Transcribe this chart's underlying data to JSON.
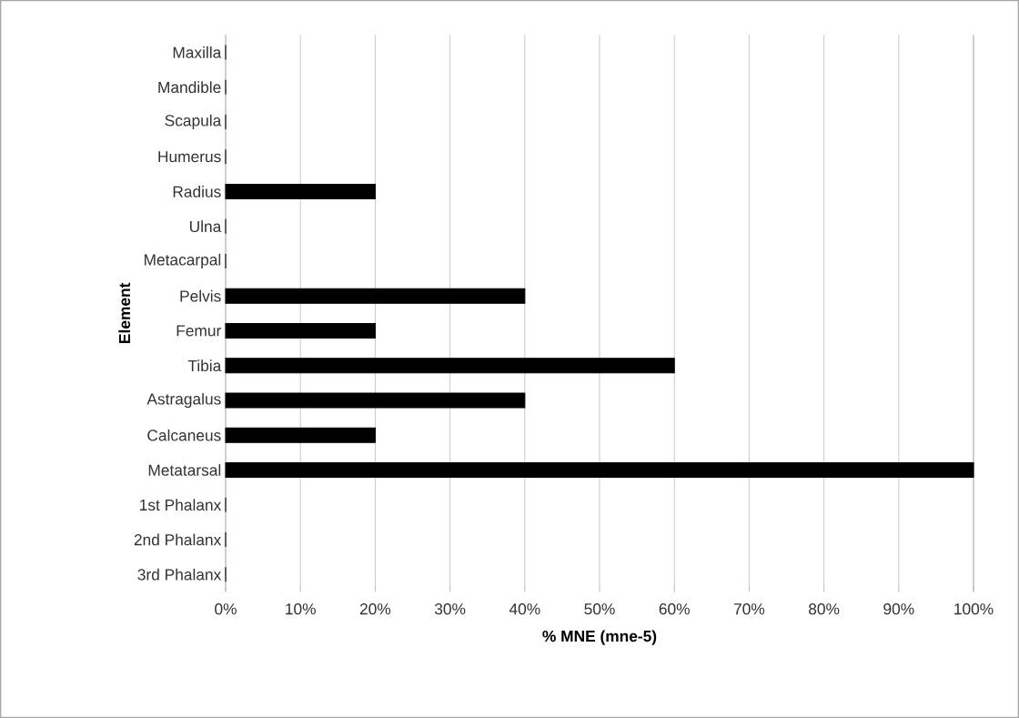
{
  "chart_data": {
    "type": "bar",
    "orientation": "horizontal",
    "xlabel": "% MNE (mne-5)",
    "ylabel": "Element",
    "categories": [
      "Maxilla",
      "Mandible",
      "Scapula",
      "Humerus",
      "Radius",
      "Ulna",
      "Metacarpal",
      "Pelvis",
      "Femur",
      "Tibia",
      "Astragalus",
      "Calcaneus",
      "Metatarsal",
      "1st Phalanx",
      "2nd Phalanx",
      "3rd Phalanx"
    ],
    "values": [
      0,
      0,
      0,
      0,
      20,
      0,
      0,
      40,
      20,
      60,
      40,
      20,
      100,
      0,
      0,
      0
    ],
    "color": "#000000",
    "xlim": [
      0,
      100
    ],
    "xticks": [
      {
        "value": 0,
        "label": "0%"
      },
      {
        "value": 10,
        "label": "10%"
      },
      {
        "value": 20,
        "label": "20%"
      },
      {
        "value": 30,
        "label": "30%"
      },
      {
        "value": 40,
        "label": "40%"
      },
      {
        "value": 50,
        "label": "50%"
      },
      {
        "value": 60,
        "label": "60%"
      },
      {
        "value": 70,
        "label": "70%"
      },
      {
        "value": 80,
        "label": "80%"
      },
      {
        "value": 90,
        "label": "90%"
      },
      {
        "value": 100,
        "label": "100%"
      }
    ],
    "grid": "x"
  }
}
